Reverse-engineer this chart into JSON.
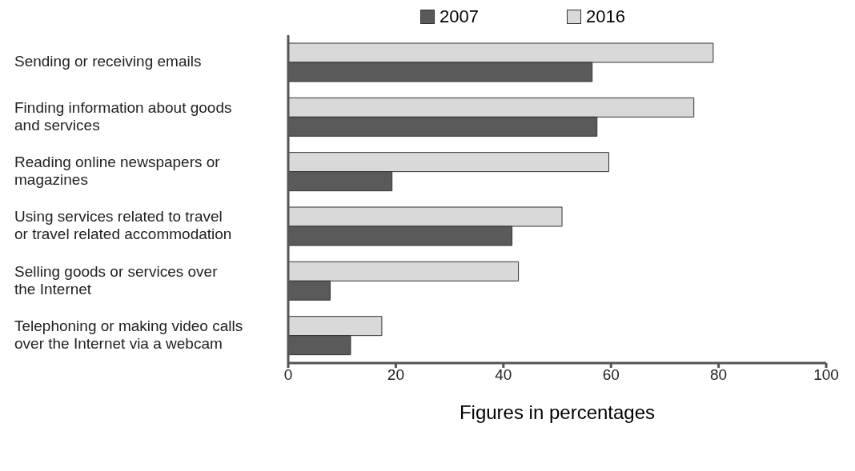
{
  "chart_data": {
    "type": "bar",
    "orientation": "horizontal",
    "xlabel": "Figures in percentages",
    "categories": [
      "Sending or receiving emails",
      "Finding information about goods and services",
      "Reading online newspapers or magazines",
      "Using services related to travel or travel related accommodation",
      "Selling goods or services over the Internet",
      "Telephoning or making video calls over the Internet via a webcam"
    ],
    "series": [
      {
        "name": "2007",
        "color": "#5a5a5a",
        "values": [
          56.5,
          57.4,
          19.3,
          41.6,
          7.8,
          11.6
        ]
      },
      {
        "name": "2016",
        "color": "#d9d9d9",
        "values": [
          79,
          75.4,
          59.6,
          50.9,
          42.8,
          17.4
        ]
      }
    ],
    "xlim": [
      0,
      100
    ],
    "xticks": [
      0,
      20,
      40,
      60,
      80,
      100
    ],
    "grid": false,
    "legend": "top"
  }
}
